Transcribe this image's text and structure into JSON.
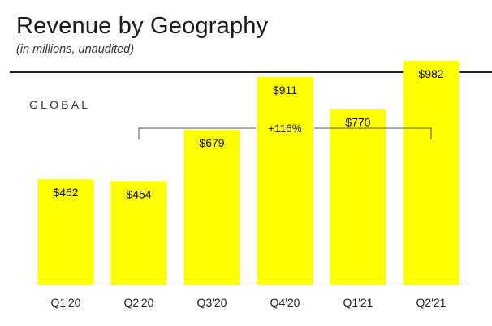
{
  "header": {
    "title": "Revenue by Geography",
    "subtitle": "(in millions, unaudited)",
    "section_label": "GLOBAL"
  },
  "colors": {
    "bar": "#ffff00",
    "text": "#1a1a1a",
    "axis": "#9a9a9a"
  },
  "chart_data": {
    "type": "bar",
    "title": "Revenue by Geography",
    "subtitle": "(in millions, unaudited)",
    "categories": [
      "Q1'20",
      "Q2'20",
      "Q3'20",
      "Q4'20",
      "Q1'21",
      "Q2'21"
    ],
    "values": [
      462,
      454,
      679,
      911,
      770,
      982
    ],
    "value_labels": [
      "$462",
      "$454",
      "$679",
      "$911",
      "$770",
      "$982"
    ],
    "ylim": [
      0,
      1000
    ],
    "grid": false,
    "annotation": {
      "text": "+116%",
      "from_category": "Q2'20",
      "to_category": "Q2'21"
    }
  }
}
